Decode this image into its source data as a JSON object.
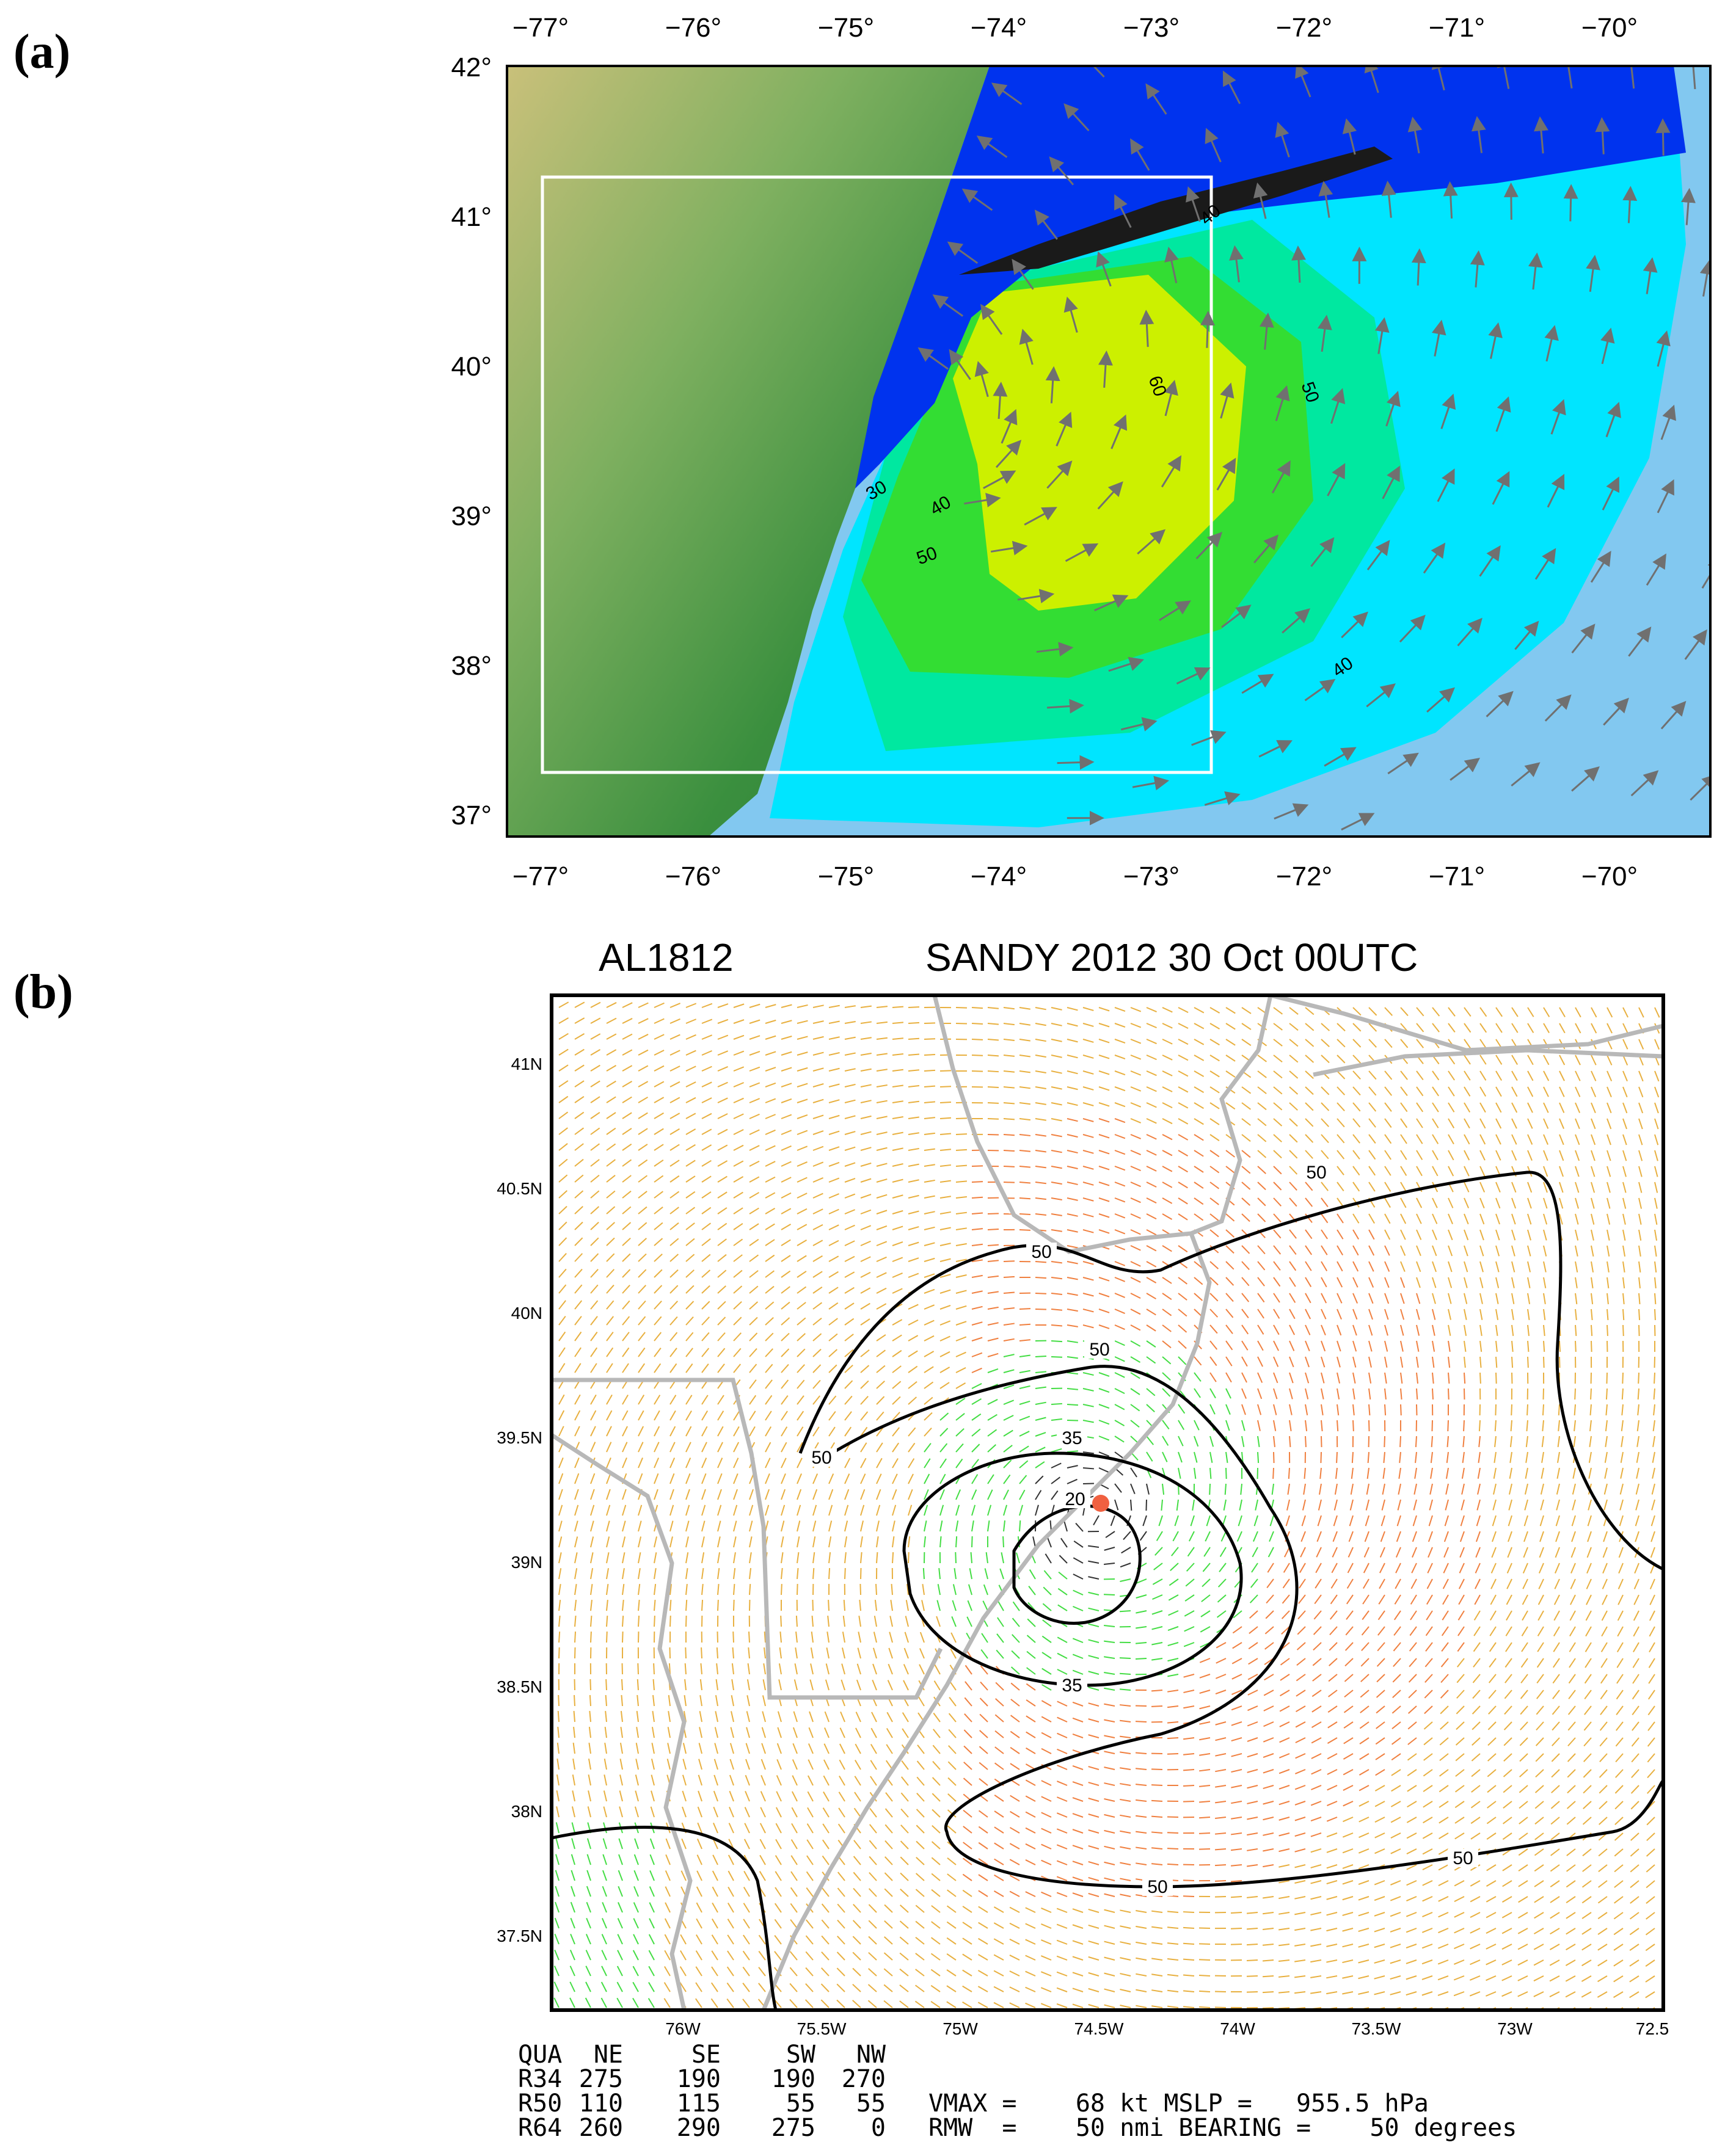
{
  "panel_a": {
    "label": "(a)",
    "lon_ticks": [
      "−77°",
      "−76°",
      "−75°",
      "−74°",
      "−73°",
      "−72°",
      "−71°",
      "−70°"
    ],
    "lat_ticks": [
      "42°",
      "41°",
      "40°",
      "39°",
      "38°",
      "37°"
    ],
    "contour_labels": [
      "40",
      "60",
      "50",
      "30",
      "40",
      "50",
      "40"
    ],
    "colors": {
      "land_dark": "#3a8f3e",
      "land_light": "#c9c07a",
      "ocean": "#82c8f0",
      "wind_low": "#0033ee",
      "wind_30": "#00e5ff",
      "wind_40": "#00e8a0",
      "wind_50": "#33dd33",
      "wind_60": "#ccf000",
      "arrows": "#707070",
      "box": "#ffffff"
    }
  },
  "panel_b": {
    "label": "(b)",
    "title_left": "AL1812",
    "title_right": "SANDY 2012 30 Oct 00UTC",
    "lat_ticks": [
      "41N",
      "40.5N",
      "40N",
      "39.5N",
      "39N",
      "38.5N",
      "38N",
      "37.5N"
    ],
    "lon_ticks": [
      "76W",
      "75.5W",
      "75W",
      "74.5W",
      "74W",
      "73.5W",
      "73W",
      "72.5"
    ],
    "contour_labels": [
      "50",
      "50",
      "50",
      "50",
      "35",
      "20",
      "35",
      "50",
      "50"
    ],
    "colors": {
      "barb_yellow": "#e8b040",
      "barb_orange": "#f08040",
      "barb_green": "#44dd44",
      "barb_black": "#333333",
      "barb_red": "#ee4466",
      "coast": "#b8b8b8",
      "center": "#f06040"
    },
    "table": {
      "header": [
        "QUA",
        "NE",
        "SE",
        "SW",
        "NW"
      ],
      "rows": [
        [
          "R34",
          "275",
          "190",
          "190",
          "270"
        ],
        [
          "R50",
          "110",
          "115",
          "55",
          "55"
        ],
        [
          "R64",
          "260",
          "290",
          "275",
          "0"
        ]
      ],
      "vmax_line": "VMAX =    68 kt MSLP =   955.5 hPa",
      "rmw_line": "RMW  =    50 nmi BEARING =    50 degrees"
    }
  }
}
